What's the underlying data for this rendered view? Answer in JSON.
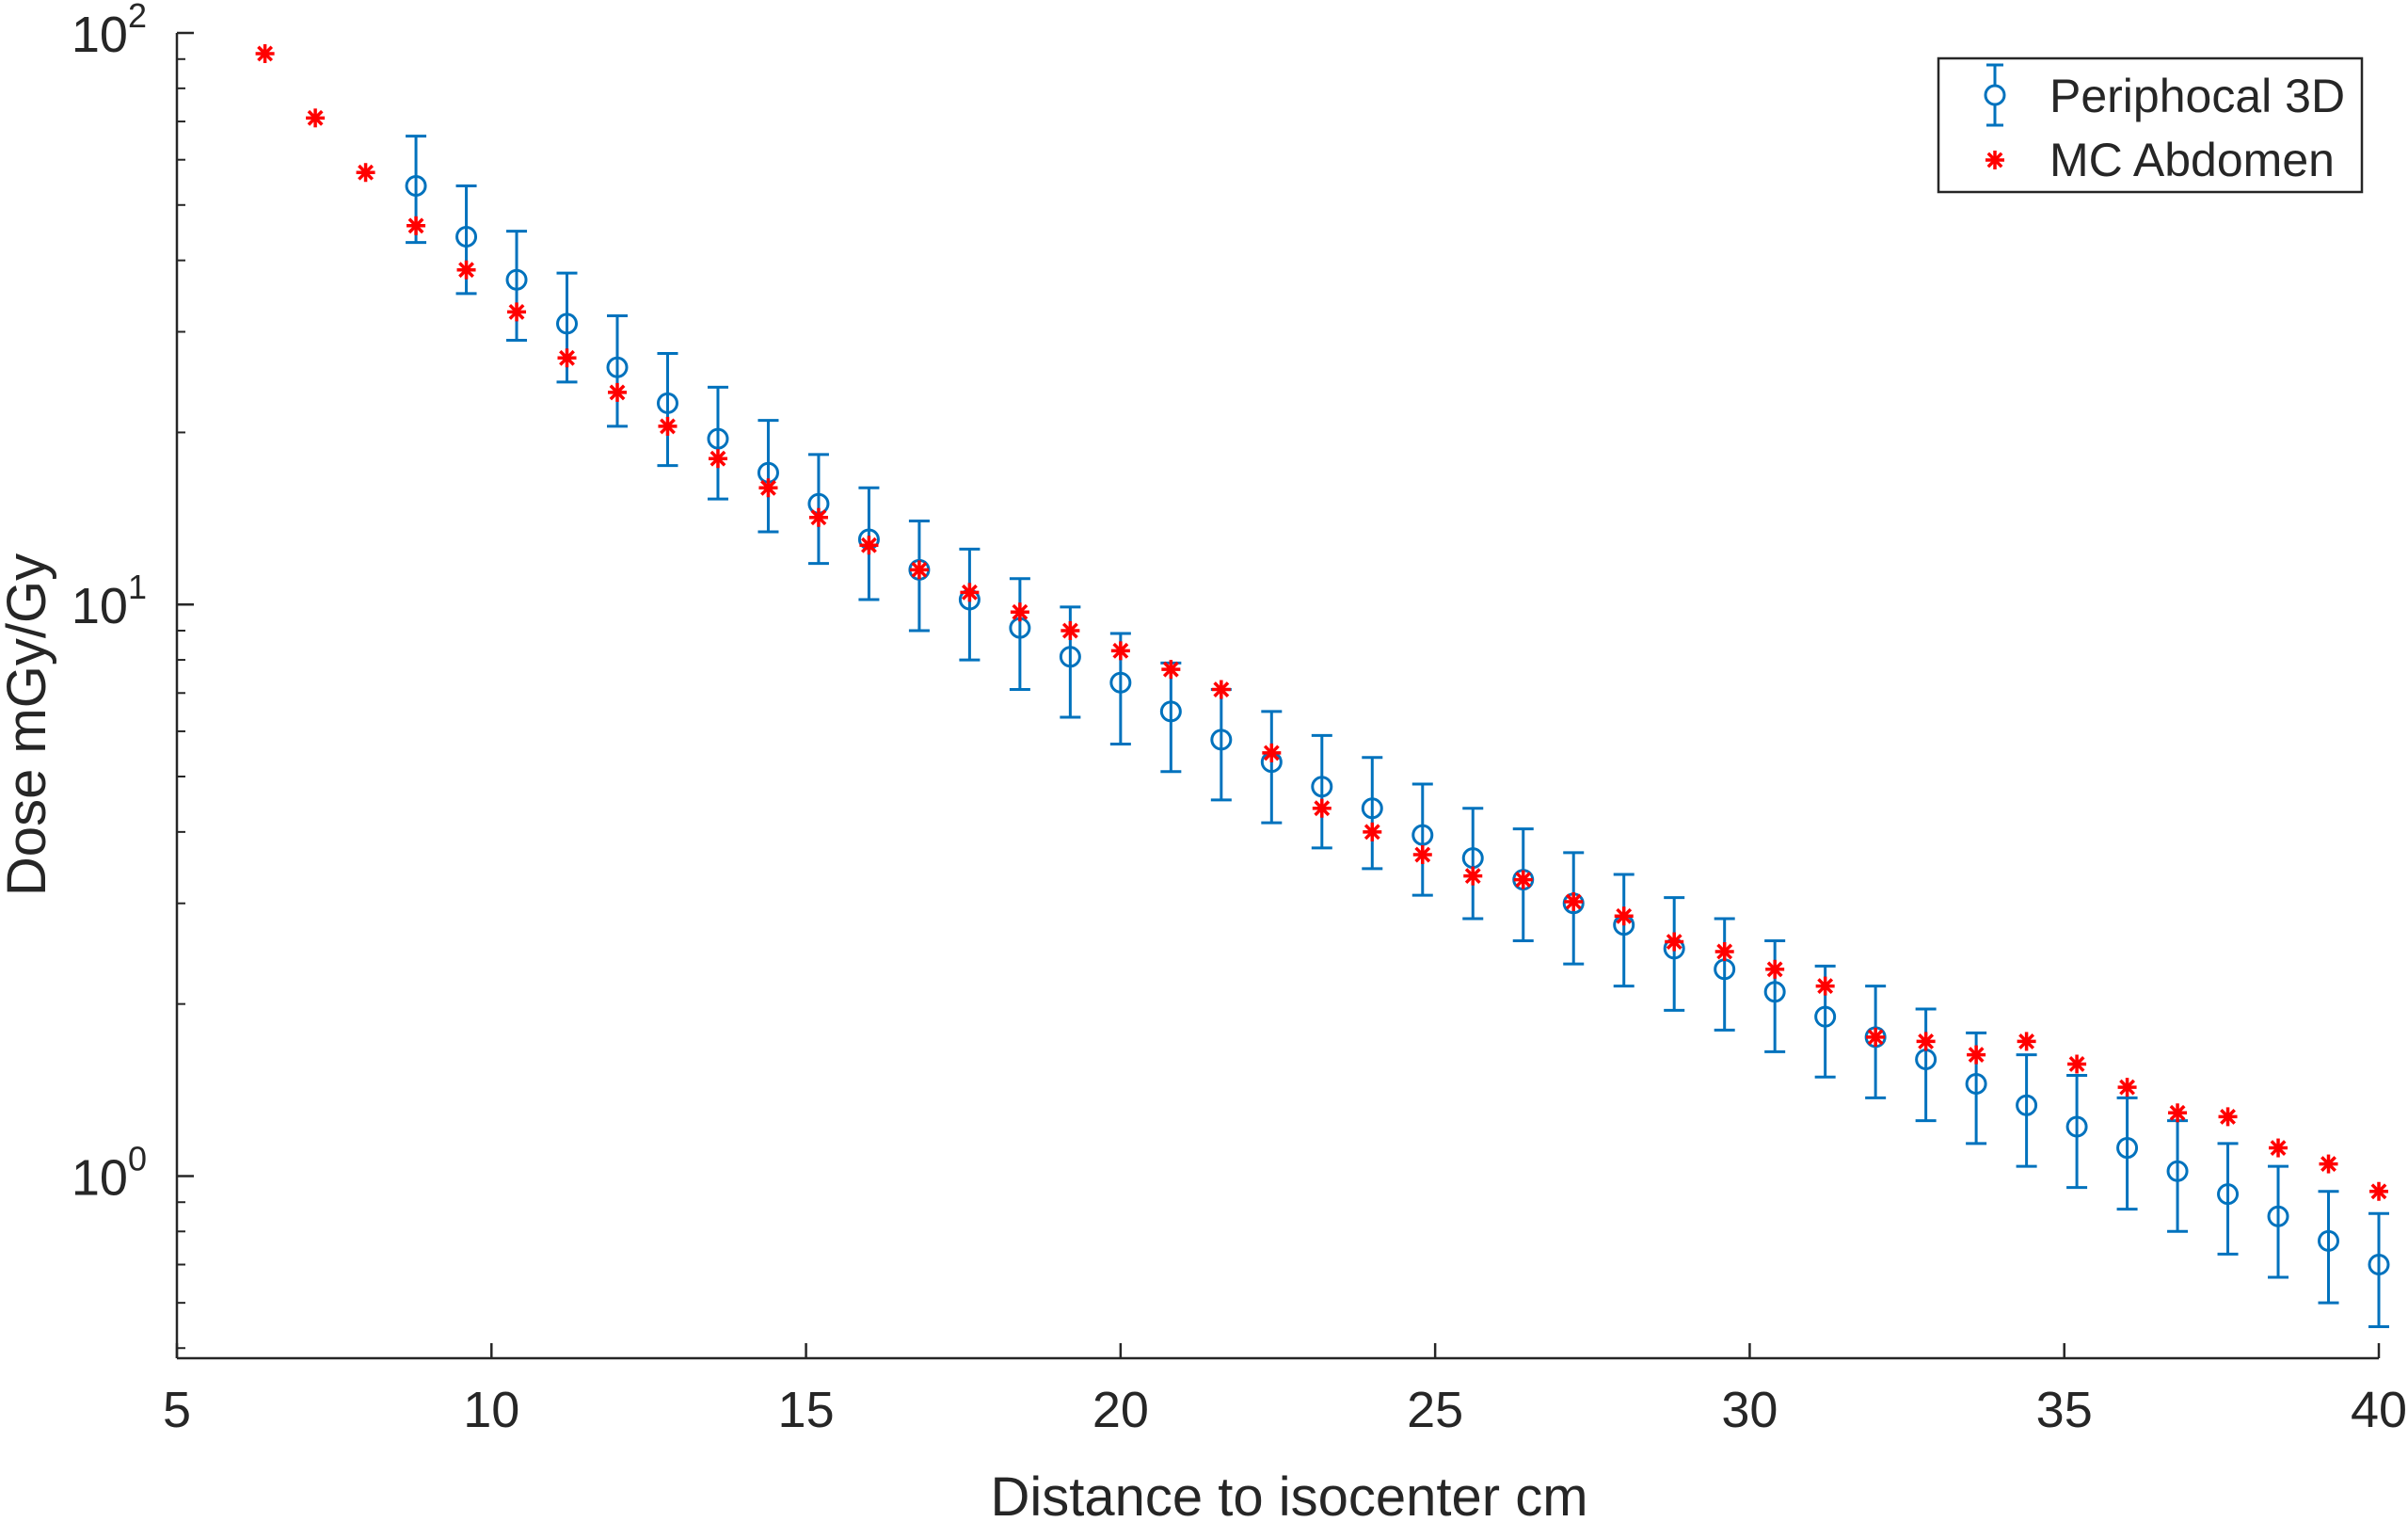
{
  "chart_data": {
    "type": "scatter",
    "title": "",
    "xlabel": "Distance to isocenter cm",
    "ylabel": "Dose mGy/Gy",
    "xscale": "linear",
    "yscale": "log",
    "xlim": [
      5,
      40
    ],
    "ylim": [
      0.48,
      100
    ],
    "x_ticks": [
      5,
      10,
      15,
      20,
      25,
      30,
      35,
      40
    ],
    "x_tick_labels": [
      "5",
      "10",
      "15",
      "20",
      "25",
      "30",
      "35",
      "40"
    ],
    "y_ticks": [
      {
        "value": 1,
        "base": "10",
        "exp": "0"
      },
      {
        "value": 10,
        "base": "10",
        "exp": "1"
      },
      {
        "value": 100,
        "base": "10",
        "exp": "2"
      }
    ],
    "grid": false,
    "legend_position": "top-right",
    "legend": [
      "Periphocal 3D",
      "MC Abdomen"
    ],
    "series": [
      {
        "name": "Periphocal 3D",
        "marker": "circle",
        "error_bars": true,
        "color": "#0072BD",
        "x": [
          8.8,
          9.6,
          10.4,
          11.2,
          12.0,
          12.8,
          13.6,
          14.4,
          15.2,
          16.0,
          16.8,
          17.6,
          18.4,
          19.2,
          20.0,
          20.8,
          21.6,
          22.4,
          23.2,
          24.0,
          24.8,
          25.6,
          26.4,
          27.2,
          28.0,
          28.8,
          29.6,
          30.4,
          31.2,
          32.0,
          32.8,
          33.6,
          34.4,
          35.2,
          36.0,
          36.8,
          37.6,
          38.4,
          39.2,
          40.0
        ],
        "y": [
          54,
          44,
          37,
          31,
          26,
          22.5,
          19.5,
          17,
          15,
          13,
          11.5,
          10.2,
          9.1,
          8.1,
          7.3,
          6.5,
          5.8,
          5.3,
          4.8,
          4.4,
          3.95,
          3.6,
          3.3,
          3.0,
          2.75,
          2.5,
          2.3,
          2.1,
          1.9,
          1.75,
          1.6,
          1.45,
          1.33,
          1.22,
          1.12,
          1.02,
          0.93,
          0.85,
          0.77,
          0.7
        ],
        "y_lower": [
          43,
          35,
          29,
          24.5,
          20.5,
          17.5,
          15.3,
          13.4,
          11.8,
          10.2,
          9.0,
          8.0,
          7.1,
          6.35,
          5.7,
          5.1,
          4.55,
          4.15,
          3.75,
          3.45,
          3.1,
          2.82,
          2.58,
          2.35,
          2.15,
          1.95,
          1.8,
          1.65,
          1.49,
          1.37,
          1.25,
          1.14,
          1.04,
          0.955,
          0.875,
          0.8,
          0.73,
          0.665,
          0.6,
          0.545
        ],
        "y_upper": [
          66,
          54,
          45,
          38,
          32,
          27.5,
          24,
          21,
          18.3,
          16,
          14,
          12.5,
          11.1,
          9.9,
          8.9,
          7.9,
          7.1,
          6.5,
          5.9,
          5.4,
          4.85,
          4.4,
          4.05,
          3.68,
          3.37,
          3.07,
          2.82,
          2.58,
          2.33,
          2.15,
          1.96,
          1.78,
          1.63,
          1.5,
          1.37,
          1.25,
          1.14,
          1.04,
          0.94,
          0.86
        ]
      },
      {
        "name": "MC Abdomen",
        "marker": "asterisk",
        "error_bars": false,
        "color": "#FF0000",
        "x": [
          6.4,
          7.2,
          8.0,
          8.8,
          9.6,
          10.4,
          11.2,
          12.0,
          12.8,
          13.6,
          14.4,
          15.2,
          16.0,
          16.8,
          17.6,
          18.4,
          19.2,
          20.0,
          20.8,
          21.6,
          22.4,
          23.2,
          24.0,
          24.8,
          25.6,
          26.4,
          27.2,
          28.0,
          28.8,
          29.6,
          30.4,
          31.2,
          32.0,
          32.8,
          33.6,
          34.4,
          35.2,
          36.0,
          36.8,
          37.6,
          38.4,
          39.2,
          40.0
        ],
        "y": [
          92,
          71,
          57,
          46,
          38.5,
          32.5,
          27,
          23.5,
          20.5,
          18,
          16,
          14.2,
          12.7,
          11.5,
          10.5,
          9.7,
          9.0,
          8.3,
          7.7,
          7.1,
          5.5,
          4.4,
          4.0,
          3.65,
          3.35,
          3.3,
          3.02,
          2.85,
          2.57,
          2.47,
          2.3,
          2.15,
          1.75,
          1.72,
          1.63,
          1.72,
          1.57,
          1.43,
          1.29,
          1.27,
          1.12,
          1.05,
          0.94
        ]
      }
    ]
  }
}
